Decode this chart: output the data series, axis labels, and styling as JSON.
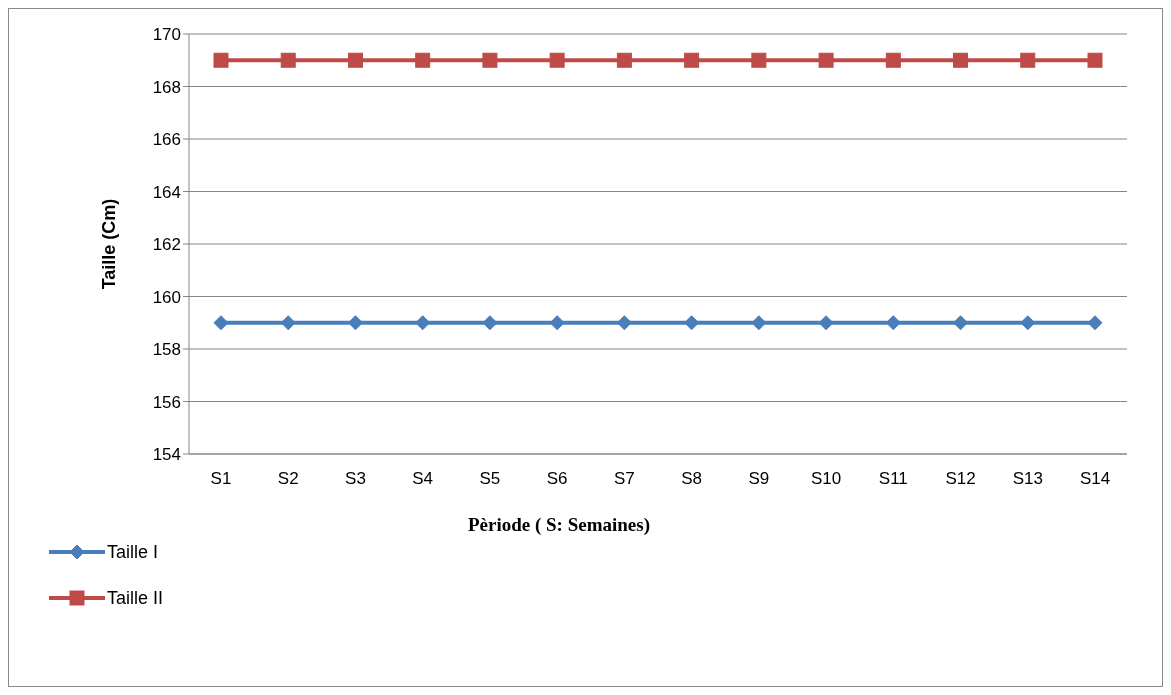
{
  "chart_data": {
    "type": "line",
    "xlabel": "Pèriode ( S: Semaines)",
    "ylabel": "Taille (Cm)",
    "categories": [
      "S1",
      "S2",
      "S3",
      "S4",
      "S5",
      "S6",
      "S7",
      "S8",
      "S9",
      "S10",
      "S11",
      "S12",
      "S13",
      "S14"
    ],
    "series": [
      {
        "name": "Taille I",
        "color": "#4a7ebb",
        "marker": "diamond",
        "values": [
          159,
          159,
          159,
          159,
          159,
          159,
          159,
          159,
          159,
          159,
          159,
          159,
          159,
          159
        ]
      },
      {
        "name": "Taille II",
        "color": "#be4b48",
        "marker": "square",
        "values": [
          169,
          169,
          169,
          169,
          169,
          169,
          169,
          169,
          169,
          169,
          169,
          169,
          169,
          169
        ]
      }
    ],
    "ylim": [
      154,
      170
    ],
    "yticks": [
      154,
      156,
      158,
      160,
      162,
      164,
      166,
      168,
      170
    ],
    "grid": "y",
    "legend": "bottom left",
    "line_style": "solid"
  }
}
